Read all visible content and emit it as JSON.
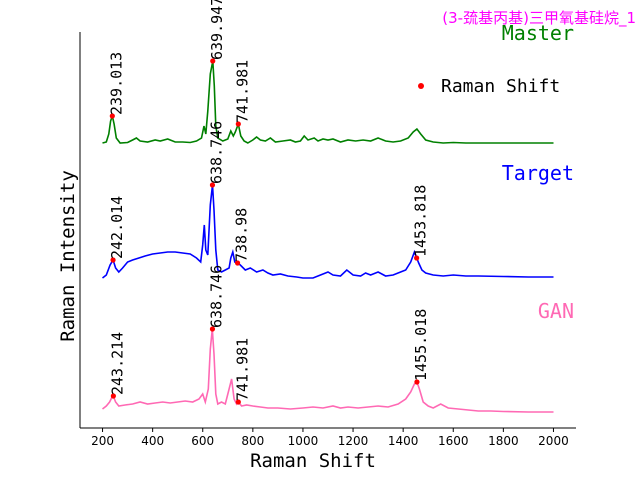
{
  "chart_data": {
    "type": "line",
    "title": "(3-巯基丙基)三甲氧基硅烷_1",
    "title_color": "#ff00ff",
    "xlabel": "Raman Shift",
    "ylabel": "Raman Intensity",
    "xlim": [
      110,
      2090
    ],
    "xticks": [
      200,
      400,
      600,
      800,
      1000,
      1200,
      1400,
      1600,
      1800,
      2000
    ],
    "xtick_labels": [
      "200",
      "400",
      "600",
      "800",
      "1000",
      "1200",
      "1400",
      "1600",
      "1800",
      "2000"
    ],
    "yticks_shown": false,
    "legend": {
      "label": "Raman Shift",
      "marker": "red-dot",
      "placement": "upper-right"
    },
    "marker_color": "#ff0000",
    "series": [
      {
        "name": "Master",
        "color": "#008000",
        "label_color": "#008000",
        "offset": 2.0,
        "points": [
          [
            200,
            0.03
          ],
          [
            215,
            0.04
          ],
          [
            225,
            0.12
          ],
          [
            232,
            0.25
          ],
          [
            239,
            0.3
          ],
          [
            246,
            0.22
          ],
          [
            255,
            0.08
          ],
          [
            270,
            0.03
          ],
          [
            300,
            0.035
          ],
          [
            320,
            0.06
          ],
          [
            335,
            0.08
          ],
          [
            350,
            0.05
          ],
          [
            380,
            0.04
          ],
          [
            410,
            0.06
          ],
          [
            430,
            0.05
          ],
          [
            460,
            0.07
          ],
          [
            490,
            0.04
          ],
          [
            520,
            0.04
          ],
          [
            550,
            0.035
          ],
          [
            575,
            0.05
          ],
          [
            595,
            0.08
          ],
          [
            605,
            0.2
          ],
          [
            612,
            0.12
          ],
          [
            620,
            0.35
          ],
          [
            630,
            0.72
          ],
          [
            640,
            0.85
          ],
          [
            646,
            0.6
          ],
          [
            652,
            0.2
          ],
          [
            660,
            0.08
          ],
          [
            680,
            0.05
          ],
          [
            700,
            0.07
          ],
          [
            712,
            0.15
          ],
          [
            722,
            0.1
          ],
          [
            730,
            0.14
          ],
          [
            742,
            0.22
          ],
          [
            752,
            0.1
          ],
          [
            765,
            0.05
          ],
          [
            780,
            0.03
          ],
          [
            800,
            0.06
          ],
          [
            815,
            0.09
          ],
          [
            830,
            0.06
          ],
          [
            850,
            0.05
          ],
          [
            870,
            0.08
          ],
          [
            890,
            0.04
          ],
          [
            920,
            0.05
          ],
          [
            950,
            0.06
          ],
          [
            970,
            0.04
          ],
          [
            990,
            0.05
          ],
          [
            1005,
            0.1
          ],
          [
            1020,
            0.06
          ],
          [
            1045,
            0.08
          ],
          [
            1060,
            0.05
          ],
          [
            1080,
            0.07
          ],
          [
            1100,
            0.06
          ],
          [
            1120,
            0.07
          ],
          [
            1150,
            0.04
          ],
          [
            1180,
            0.06
          ],
          [
            1210,
            0.05
          ],
          [
            1240,
            0.06
          ],
          [
            1270,
            0.05
          ],
          [
            1300,
            0.08
          ],
          [
            1330,
            0.05
          ],
          [
            1360,
            0.04
          ],
          [
            1390,
            0.05
          ],
          [
            1420,
            0.08
          ],
          [
            1440,
            0.14
          ],
          [
            1455,
            0.17
          ],
          [
            1470,
            0.12
          ],
          [
            1490,
            0.06
          ],
          [
            1520,
            0.04
          ],
          [
            1560,
            0.03
          ],
          [
            1600,
            0.035
          ],
          [
            1650,
            0.03
          ],
          [
            1700,
            0.03
          ],
          [
            1800,
            0.03
          ],
          [
            1900,
            0.03
          ],
          [
            2000,
            0.03
          ]
        ],
        "peaks": [
          [
            239.013,
            0.3
          ],
          [
            639.947,
            0.85
          ],
          [
            741.981,
            0.22
          ]
        ],
        "peak_labels": [
          "239.013",
          "639.947",
          "741.981"
        ]
      },
      {
        "name": "Target",
        "color": "#0000ff",
        "label_color": "#0000ff",
        "offset": 1.0,
        "points": [
          [
            200,
            0.02
          ],
          [
            215,
            0.05
          ],
          [
            230,
            0.15
          ],
          [
            242,
            0.2
          ],
          [
            252,
            0.12
          ],
          [
            265,
            0.08
          ],
          [
            280,
            0.12
          ],
          [
            300,
            0.18
          ],
          [
            320,
            0.2
          ],
          [
            345,
            0.22
          ],
          [
            370,
            0.24
          ],
          [
            400,
            0.26
          ],
          [
            430,
            0.27
          ],
          [
            460,
            0.28
          ],
          [
            490,
            0.28
          ],
          [
            520,
            0.27
          ],
          [
            550,
            0.26
          ],
          [
            575,
            0.22
          ],
          [
            592,
            0.18
          ],
          [
            600,
            0.35
          ],
          [
            606,
            0.55
          ],
          [
            612,
            0.3
          ],
          [
            620,
            0.25
          ],
          [
            630,
            0.75
          ],
          [
            639,
            0.95
          ],
          [
            645,
            0.7
          ],
          [
            652,
            0.3
          ],
          [
            660,
            0.1
          ],
          [
            675,
            0.08
          ],
          [
            690,
            0.1
          ],
          [
            705,
            0.12
          ],
          [
            712,
            0.22
          ],
          [
            720,
            0.28
          ],
          [
            728,
            0.18
          ],
          [
            739,
            0.17
          ],
          [
            750,
            0.15
          ],
          [
            770,
            0.1
          ],
          [
            790,
            0.12
          ],
          [
            815,
            0.08
          ],
          [
            840,
            0.1
          ],
          [
            860,
            0.07
          ],
          [
            880,
            0.05
          ],
          [
            910,
            0.06
          ],
          [
            940,
            0.04
          ],
          [
            975,
            0.03
          ],
          [
            1000,
            0.02
          ],
          [
            1040,
            0.02
          ],
          [
            1070,
            0.05
          ],
          [
            1100,
            0.08
          ],
          [
            1120,
            0.05
          ],
          [
            1150,
            0.04
          ],
          [
            1175,
            0.1
          ],
          [
            1200,
            0.05
          ],
          [
            1230,
            0.04
          ],
          [
            1250,
            0.07
          ],
          [
            1270,
            0.05
          ],
          [
            1300,
            0.08
          ],
          [
            1330,
            0.04
          ],
          [
            1360,
            0.05
          ],
          [
            1390,
            0.08
          ],
          [
            1410,
            0.1
          ],
          [
            1430,
            0.18
          ],
          [
            1445,
            0.28
          ],
          [
            1454,
            0.22
          ],
          [
            1462,
            0.17
          ],
          [
            1475,
            0.1
          ],
          [
            1490,
            0.07
          ],
          [
            1520,
            0.05
          ],
          [
            1560,
            0.04
          ],
          [
            1600,
            0.05
          ],
          [
            1650,
            0.04
          ],
          [
            1700,
            0.04
          ],
          [
            1800,
            0.035
          ],
          [
            1900,
            0.03
          ],
          [
            2000,
            0.03
          ]
        ],
        "peaks": [
          [
            242.014,
            0.2
          ],
          [
            638.746,
            0.95
          ],
          [
            738.98,
            0.17
          ],
          [
            1453.818,
            0.22
          ]
        ],
        "peak_labels": [
          "242.014",
          "638.746",
          "738.98",
          "1453.818"
        ]
      },
      {
        "name": "GAN",
        "color": "#ff69b4",
        "label_color": "#ff69b4",
        "offset": 0.0,
        "points": [
          [
            200,
            0.05
          ],
          [
            215,
            0.08
          ],
          [
            228,
            0.12
          ],
          [
            236,
            0.16
          ],
          [
            243,
            0.18
          ],
          [
            252,
            0.12
          ],
          [
            265,
            0.08
          ],
          [
            290,
            0.09
          ],
          [
            320,
            0.1
          ],
          [
            350,
            0.12
          ],
          [
            380,
            0.1
          ],
          [
            410,
            0.11
          ],
          [
            440,
            0.12
          ],
          [
            470,
            0.11
          ],
          [
            500,
            0.12
          ],
          [
            530,
            0.13
          ],
          [
            560,
            0.12
          ],
          [
            585,
            0.15
          ],
          [
            600,
            0.2
          ],
          [
            610,
            0.12
          ],
          [
            622,
            0.25
          ],
          [
            630,
            0.65
          ],
          [
            638,
            0.85
          ],
          [
            645,
            0.6
          ],
          [
            652,
            0.2
          ],
          [
            660,
            0.1
          ],
          [
            675,
            0.12
          ],
          [
            690,
            0.1
          ],
          [
            705,
            0.25
          ],
          [
            715,
            0.35
          ],
          [
            725,
            0.15
          ],
          [
            735,
            0.1
          ],
          [
            742,
            0.12
          ],
          [
            755,
            0.08
          ],
          [
            775,
            0.09
          ],
          [
            800,
            0.08
          ],
          [
            830,
            0.07
          ],
          [
            860,
            0.06
          ],
          [
            900,
            0.06
          ],
          [
            950,
            0.05
          ],
          [
            1000,
            0.06
          ],
          [
            1040,
            0.07
          ],
          [
            1080,
            0.06
          ],
          [
            1120,
            0.08
          ],
          [
            1150,
            0.06
          ],
          [
            1180,
            0.07
          ],
          [
            1220,
            0.06
          ],
          [
            1260,
            0.07
          ],
          [
            1300,
            0.08
          ],
          [
            1340,
            0.07
          ],
          [
            1380,
            0.1
          ],
          [
            1410,
            0.15
          ],
          [
            1430,
            0.22
          ],
          [
            1445,
            0.3
          ],
          [
            1455,
            0.32
          ],
          [
            1465,
            0.25
          ],
          [
            1480,
            0.12
          ],
          [
            1500,
            0.08
          ],
          [
            1520,
            0.06
          ],
          [
            1550,
            0.1
          ],
          [
            1580,
            0.06
          ],
          [
            1620,
            0.05
          ],
          [
            1660,
            0.04
          ],
          [
            1700,
            0.03
          ],
          [
            1750,
            0.03
          ],
          [
            1800,
            0.025
          ],
          [
            1900,
            0.02
          ],
          [
            2000,
            0.02
          ]
        ],
        "peaks": [
          [
            243.214,
            0.18
          ],
          [
            638.746,
            0.85
          ],
          [
            741.981,
            0.12
          ],
          [
            1455.018,
            0.32
          ]
        ],
        "peak_labels": [
          "243.214",
          "638.746",
          "741.981",
          "1455.018"
        ]
      }
    ]
  }
}
